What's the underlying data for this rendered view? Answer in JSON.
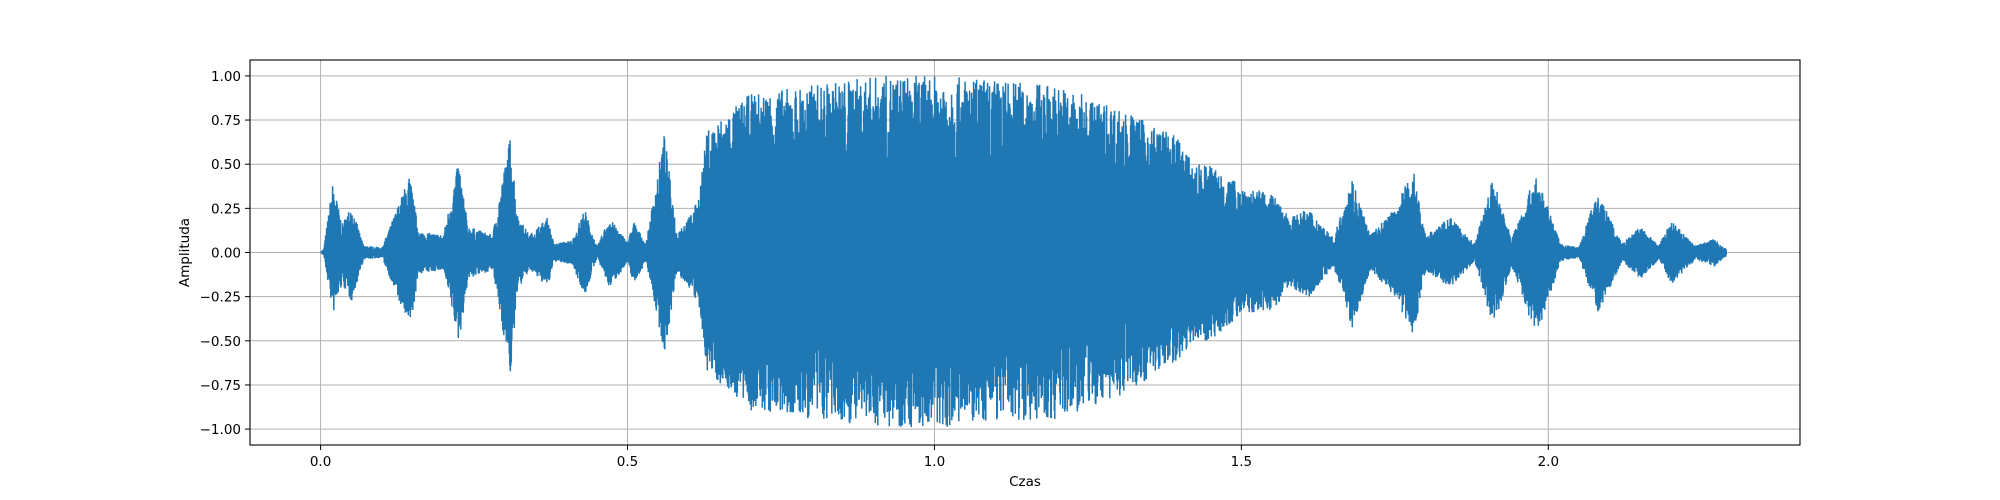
{
  "chart_data": {
    "type": "line",
    "title": "",
    "xlabel": "Czas",
    "ylabel": "Amplituda",
    "xlim": [
      -0.115,
      2.41
    ],
    "ylim": [
      -1.09,
      1.09
    ],
    "grid": true,
    "x_ticks": [
      0.0,
      0.5,
      1.0,
      1.5,
      2.0
    ],
    "x_tick_labels": [
      "0.0",
      "0.5",
      "1.0",
      "1.5",
      "2.0"
    ],
    "y_ticks": [
      1.0,
      0.75,
      0.5,
      0.25,
      0.0,
      -0.25,
      -0.5,
      -0.75,
      -1.0
    ],
    "y_tick_labels": [
      "1.00",
      "0.75",
      "0.50",
      "0.25",
      "0.00",
      "−0.25",
      "−0.50",
      "−0.75",
      "−1.00"
    ],
    "series": [
      {
        "color": "#1f77b4",
        "x_range": [
          0.0,
          2.29
        ],
        "envelope": {
          "time": [
            0.0,
            0.005,
            0.02,
            0.035,
            0.05,
            0.07,
            0.1,
            0.13,
            0.145,
            0.16,
            0.2,
            0.225,
            0.24,
            0.28,
            0.31,
            0.32,
            0.34,
            0.37,
            0.38,
            0.41,
            0.43,
            0.45,
            0.47,
            0.5,
            0.51,
            0.53,
            0.56,
            0.58,
            0.6,
            0.615,
            0.63,
            0.7,
            0.8,
            0.9,
            1.0,
            1.1,
            1.2,
            1.3,
            1.4,
            1.42,
            1.45,
            1.5,
            1.55,
            1.58,
            1.61,
            1.65,
            1.68,
            1.71,
            1.75,
            1.78,
            1.8,
            1.84,
            1.88,
            1.91,
            1.94,
            1.98,
            2.02,
            2.05,
            2.08,
            2.12,
            2.15,
            2.18,
            2.2,
            2.24,
            2.27,
            2.29
          ],
          "upper": [
            0.0,
            0.02,
            0.4,
            0.16,
            0.27,
            0.04,
            0.03,
            0.3,
            0.44,
            0.12,
            0.1,
            0.52,
            0.15,
            0.1,
            0.68,
            0.22,
            0.1,
            0.2,
            0.05,
            0.07,
            0.25,
            0.03,
            0.2,
            0.06,
            0.18,
            0.05,
            0.68,
            0.12,
            0.2,
            0.3,
            0.7,
            0.9,
            0.95,
            1.0,
            1.0,
            0.98,
            0.95,
            0.82,
            0.65,
            0.5,
            0.5,
            0.38,
            0.33,
            0.2,
            0.25,
            0.08,
            0.43,
            0.1,
            0.25,
            0.48,
            0.1,
            0.2,
            0.05,
            0.43,
            0.08,
            0.45,
            0.05,
            0.03,
            0.35,
            0.05,
            0.15,
            0.04,
            0.18,
            0.04,
            0.08,
            0.02
          ],
          "lower": [
            0.0,
            -0.02,
            -0.35,
            -0.18,
            -0.28,
            -0.04,
            -0.03,
            -0.3,
            -0.44,
            -0.12,
            -0.1,
            -0.52,
            -0.15,
            -0.1,
            -0.72,
            -0.22,
            -0.1,
            -0.2,
            -0.05,
            -0.07,
            -0.25,
            -0.03,
            -0.2,
            -0.06,
            -0.18,
            -0.05,
            -0.58,
            -0.12,
            -0.2,
            -0.3,
            -0.68,
            -0.9,
            -0.95,
            -0.98,
            -1.0,
            -0.95,
            -0.95,
            -0.82,
            -0.6,
            -0.5,
            -0.5,
            -0.35,
            -0.33,
            -0.2,
            -0.25,
            -0.08,
            -0.43,
            -0.1,
            -0.25,
            -0.48,
            -0.1,
            -0.2,
            -0.05,
            -0.43,
            -0.08,
            -0.48,
            -0.05,
            -0.03,
            -0.35,
            -0.05,
            -0.15,
            -0.04,
            -0.18,
            -0.04,
            -0.08,
            -0.02
          ]
        }
      }
    ]
  }
}
